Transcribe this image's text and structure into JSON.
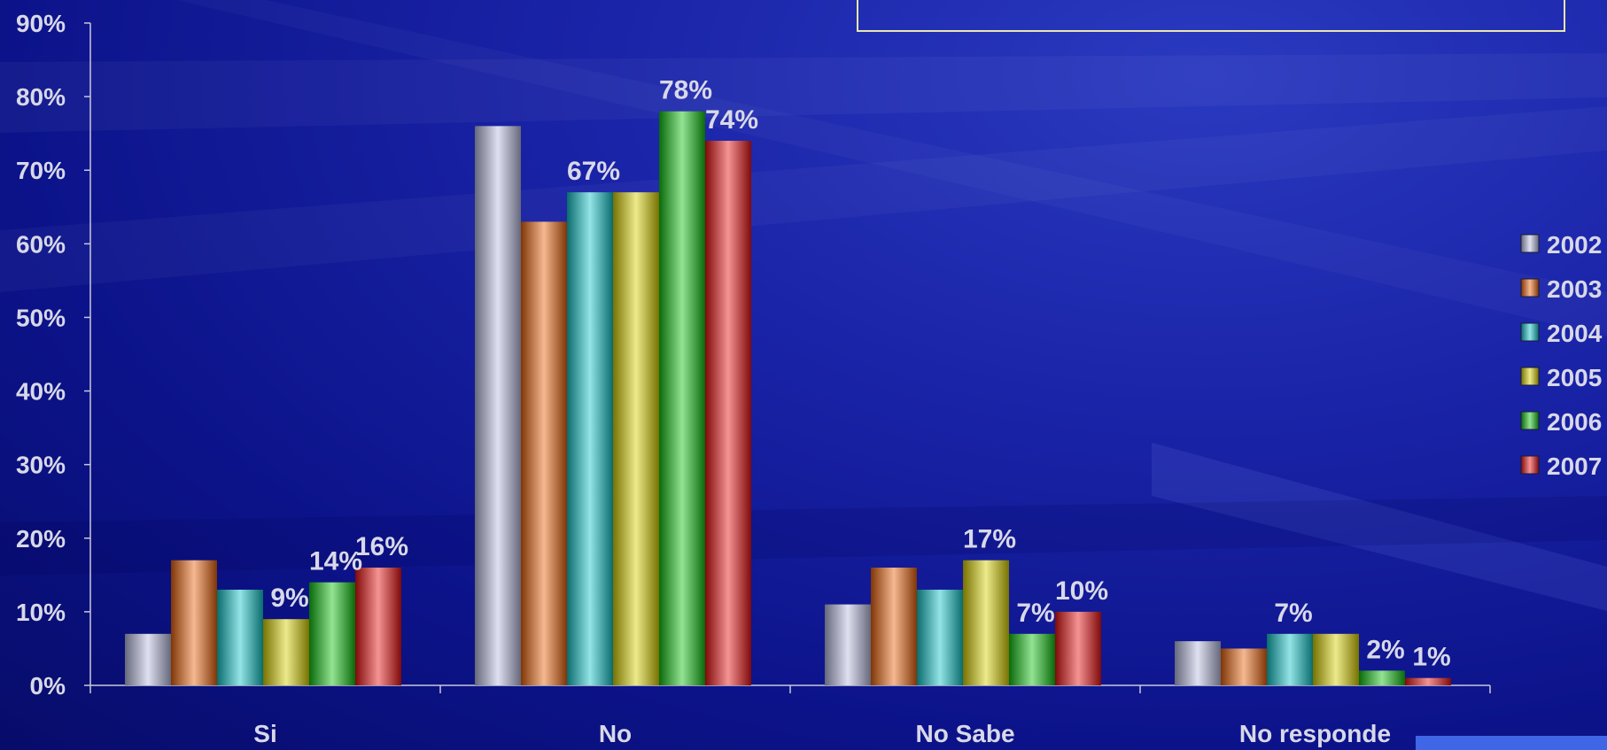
{
  "chart_data": {
    "type": "bar",
    "categories": [
      "Si",
      "No",
      "No Sabe",
      "No responde"
    ],
    "series": [
      {
        "name": "2002",
        "color": "#b8bce0",
        "values": [
          7,
          76,
          11,
          6
        ],
        "labels": [
          "",
          "",
          "",
          ""
        ]
      },
      {
        "name": "2003",
        "color": "#e8620a",
        "values": [
          17,
          63,
          16,
          5
        ],
        "labels": [
          "",
          "",
          "",
          ""
        ]
      },
      {
        "name": "2004",
        "color": "#10c4c8",
        "values": [
          13,
          67,
          13,
          7
        ],
        "labels": [
          "",
          "67%",
          "",
          "7%"
        ]
      },
      {
        "name": "2005",
        "color": "#d8d000",
        "values": [
          9,
          67,
          17,
          7
        ],
        "labels": [
          "9%",
          "",
          "17%",
          ""
        ]
      },
      {
        "name": "2006",
        "color": "#10c010",
        "values": [
          14,
          78,
          7,
          2
        ],
        "labels": [
          "14%",
          "78%",
          "7%",
          "2%"
        ]
      },
      {
        "name": "2007",
        "color": "#e81010",
        "values": [
          16,
          74,
          10,
          1
        ],
        "labels": [
          "16%",
          "74%",
          "10%",
          "1%"
        ]
      }
    ],
    "y_ticks": [
      "0%",
      "10%",
      "20%",
      "30%",
      "40%",
      "50%",
      "60%",
      "70%",
      "80%",
      "90%"
    ],
    "ylim": [
      0,
      90
    ],
    "legend": [
      "2002",
      "2003",
      "2004",
      "2005",
      "2006",
      "2007"
    ],
    "legend_position": "right",
    "grid": false,
    "title": "",
    "xlabel": "",
    "ylabel": ""
  }
}
